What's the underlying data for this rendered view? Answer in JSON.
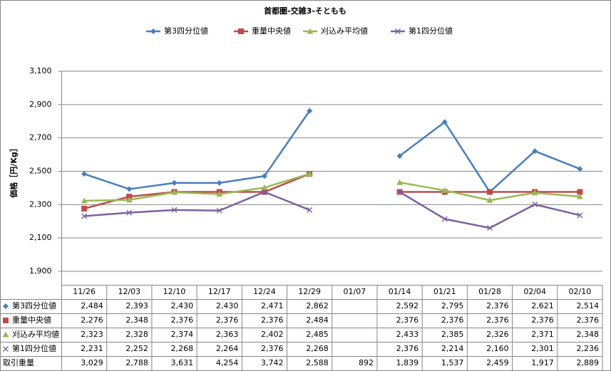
{
  "chart_data": {
    "type": "line",
    "title": "首都圏-交雑3-そともも",
    "y_label": "価格［円/Kg］",
    "categories": [
      "11/26",
      "12/03",
      "12/10",
      "12/17",
      "12/24",
      "12/29",
      "01/07",
      "01/14",
      "01/21",
      "01/28",
      "02/04",
      "02/10"
    ],
    "ylim": [
      1900,
      3100
    ],
    "yticks": [
      {
        "value": 1900,
        "label": "1,900"
      },
      {
        "value": 2100,
        "label": "2,100"
      },
      {
        "value": 2300,
        "label": "2,300"
      },
      {
        "value": 2500,
        "label": "2,500"
      },
      {
        "value": 2700,
        "label": "2,700"
      },
      {
        "value": 2900,
        "label": "2,900"
      },
      {
        "value": 3100,
        "label": "3,100"
      }
    ],
    "grid": true,
    "series": [
      {
        "name": "第3四分位値",
        "color": "#4a7ebb",
        "marker": "diamond",
        "values": [
          2484,
          2393,
          2430,
          2430,
          2471,
          2862,
          null,
          2592,
          2795,
          2376,
          2621,
          2514
        ],
        "value_labels": [
          "2,484",
          "2,393",
          "2,430",
          "2,430",
          "2,471",
          "2,862",
          null,
          "2,592",
          "2,795",
          "2,376",
          "2,621",
          "2,514"
        ]
      },
      {
        "name": "重量中央値",
        "color": "#be4b48",
        "marker": "square",
        "values": [
          2276,
          2348,
          2376,
          2376,
          2376,
          2484,
          null,
          2376,
          2376,
          2376,
          2376,
          2376
        ],
        "value_labels": [
          "2,276",
          "2,348",
          "2,376",
          "2,376",
          "2,376",
          "2,484",
          null,
          "2,376",
          "2,376",
          "2,376",
          "2,376",
          "2,376"
        ]
      },
      {
        "name": "刈込み平均値",
        "color": "#98b954",
        "marker": "triangle",
        "values": [
          2323,
          2328,
          2374,
          2363,
          2402,
          2485,
          null,
          2433,
          2385,
          2326,
          2371,
          2348
        ],
        "value_labels": [
          "2,323",
          "2,328",
          "2,374",
          "2,363",
          "2,402",
          "2,485",
          null,
          "2,433",
          "2,385",
          "2,326",
          "2,371",
          "2,348"
        ]
      },
      {
        "name": "第1四分位値",
        "color": "#7d60a0",
        "marker": "x",
        "values": [
          2231,
          2252,
          2268,
          2264,
          2376,
          2268,
          null,
          2376,
          2214,
          2160,
          2301,
          2236
        ],
        "value_labels": [
          "2,231",
          "2,252",
          "2,268",
          "2,264",
          "2,376",
          "2,268",
          null,
          "2,376",
          "2,214",
          "2,160",
          "2,301",
          "2,236"
        ]
      }
    ],
    "table_extra_row": {
      "name": "取引重量",
      "values": [
        3029,
        2788,
        3631,
        4254,
        3742,
        2588,
        892,
        1839,
        1537,
        2459,
        1917,
        2889
      ],
      "value_labels": [
        "3,029",
        "2,788",
        "3,631",
        "4,254",
        "3,742",
        "2,588",
        "892",
        "1,839",
        "1,537",
        "2,459",
        "1,917",
        "2,889"
      ]
    }
  }
}
